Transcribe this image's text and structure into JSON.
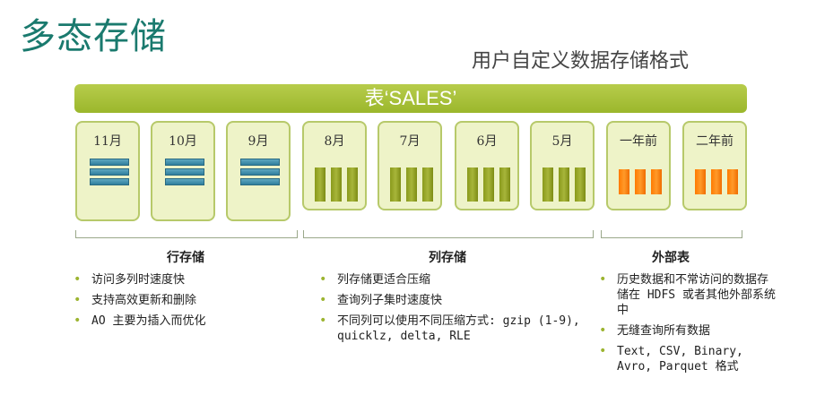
{
  "title": "多态存储",
  "subtitle": "用户自定义数据存储格式",
  "table_label": "表‘SALES’",
  "partitions": [
    {
      "label": "11月",
      "kind": "row"
    },
    {
      "label": "10月",
      "kind": "row"
    },
    {
      "label": "9月",
      "kind": "row"
    },
    {
      "label": "8月",
      "kind": "column"
    },
    {
      "label": "7月",
      "kind": "column"
    },
    {
      "label": "6月",
      "kind": "column"
    },
    {
      "label": "5月",
      "kind": "column"
    },
    {
      "label": "一年前",
      "kind": "external"
    },
    {
      "label": "二年前",
      "kind": "external"
    }
  ],
  "groups": {
    "row": {
      "title": "行存储",
      "bullets": [
        "访问多列时速度快",
        "支持高效更新和删除",
        "AO 主要为插入而优化"
      ]
    },
    "column": {
      "title": "列存储",
      "bullets": [
        "列存储更适合压缩",
        "查询列子集时速度快",
        "不同列可以使用不同压缩方式: gzip (1-9), quicklz, delta, RLE"
      ]
    },
    "external": {
      "title": "外部表",
      "bullets": [
        "历史数据和不常访问的数据存储在 HDFS 或者其他外部系统中",
        "无缝查询所有数据",
        "Text, CSV, Binary, Avro, Parquet 格式"
      ]
    }
  },
  "colors": {
    "title": "#1a7a6e",
    "banner": "#9bb72c",
    "row_storage": "#3a8aa8",
    "column_storage": "#8a9a1c",
    "external_storage": "#ff7a00"
  }
}
